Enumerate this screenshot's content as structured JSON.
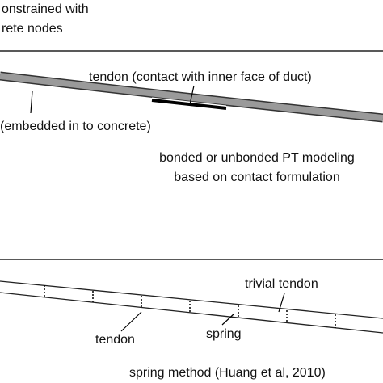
{
  "top_panel": {
    "labels": [
      "onstrained with",
      "rete nodes"
    ]
  },
  "middle_panel": {
    "tendon_label": "tendon (contact with inner face of duct)",
    "concrete_label": "(embedded in to concrete)",
    "caption": [
      "bonded or unbonded PT modeling",
      "based on contact formulation"
    ]
  },
  "bottom_panel": {
    "trivial_label": "trivial tendon",
    "tendon_label": "tendon",
    "spring_label": "spring",
    "caption": "spring method (Huang et al, 2010)"
  }
}
